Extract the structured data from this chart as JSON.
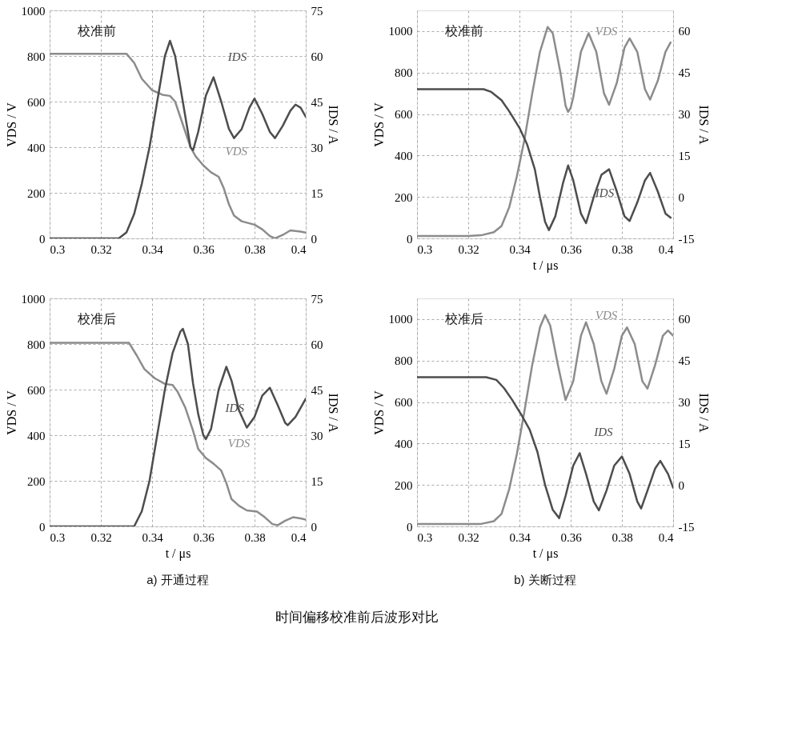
{
  "chart_data": [
    {
      "type": "line",
      "xlim": [
        0.3,
        0.4
      ],
      "xticks": [
        0.3,
        0.32,
        0.34,
        0.36,
        0.38,
        0.4
      ],
      "ylim": [
        0,
        1000
      ],
      "yticks": [
        0,
        200,
        400,
        600,
        800,
        1000
      ],
      "y2lim": [
        0,
        75
      ],
      "y2ticks": [
        0,
        15,
        30,
        45,
        60,
        75
      ],
      "ylabel": "VDS / V",
      "y2label": "IDS / A",
      "grid": true,
      "annotations": [
        "校准前"
      ],
      "series": [
        {
          "name": "VDS",
          "color": "#8c8c8c",
          "x": [
            0.3,
            0.31,
            0.32,
            0.33,
            0.333,
            0.336,
            0.34,
            0.344,
            0.347,
            0.349,
            0.352,
            0.355,
            0.357,
            0.36,
            0.363,
            0.366,
            0.368,
            0.37,
            0.372,
            0.375,
            0.38,
            0.383,
            0.386,
            0.388,
            0.391,
            0.394,
            0.398,
            0.4
          ],
          "values": [
            810,
            810,
            810,
            810,
            770,
            700,
            650,
            630,
            625,
            600,
            500,
            400,
            360,
            320,
            290,
            270,
            220,
            150,
            100,
            75,
            60,
            40,
            10,
            0,
            15,
            35,
            30,
            25
          ]
        },
        {
          "name": "IDS",
          "color": "#4d4d4d",
          "axis": "y2",
          "x": [
            0.3,
            0.31,
            0.32,
            0.327,
            0.33,
            0.333,
            0.336,
            0.339,
            0.342,
            0.345,
            0.347,
            0.349,
            0.352,
            0.355,
            0.356,
            0.358,
            0.361,
            0.364,
            0.367,
            0.37,
            0.372,
            0.375,
            0.378,
            0.38,
            0.383,
            0.386,
            0.388,
            0.391,
            0.394,
            0.396,
            0.398,
            0.4
          ],
          "values": [
            0,
            0,
            0,
            0,
            2,
            8,
            18,
            30,
            45,
            60,
            65,
            60,
            45,
            30,
            29,
            35,
            47,
            53,
            45,
            36,
            33,
            36,
            43,
            46,
            41,
            35,
            33,
            37,
            42,
            44,
            43,
            40
          ]
        }
      ]
    },
    {
      "type": "line",
      "xlim": [
        0.3,
        0.4
      ],
      "xticks": [
        0.3,
        0.32,
        0.34,
        0.36,
        0.38,
        0.4
      ],
      "ylim": [
        0,
        1100
      ],
      "yticks": [
        0,
        200,
        400,
        600,
        800,
        1000
      ],
      "y2lim": [
        -15,
        67.5
      ],
      "y2ticks": [
        -15,
        0,
        15,
        30,
        45,
        60
      ],
      "xlabel": "t / μs",
      "ylabel": "VDS / V",
      "y2label": "IDS / A",
      "grid": true,
      "annotations": [
        "校准前"
      ],
      "series": [
        {
          "name": "VDS",
          "color": "#8c8c8c",
          "x": [
            0.3,
            0.31,
            0.32,
            0.325,
            0.33,
            0.333,
            0.336,
            0.339,
            0.342,
            0.345,
            0.348,
            0.351,
            0.353,
            0.356,
            0.358,
            0.359,
            0.36,
            0.361,
            0.364,
            0.367,
            0.37,
            0.373,
            0.375,
            0.378,
            0.381,
            0.383,
            0.386,
            0.389,
            0.391,
            0.394,
            0.397,
            0.399
          ],
          "values": [
            12,
            12,
            12,
            15,
            30,
            60,
            150,
            300,
            480,
            700,
            900,
            1020,
            990,
            800,
            640,
            610,
            630,
            680,
            900,
            990,
            900,
            700,
            645,
            750,
            920,
            965,
            900,
            720,
            670,
            760,
            900,
            945
          ]
        },
        {
          "name": "IDS",
          "color": "#4d4d4d",
          "axis": "y2",
          "x": [
            0.3,
            0.31,
            0.32,
            0.326,
            0.329,
            0.333,
            0.336,
            0.34,
            0.343,
            0.346,
            0.348,
            0.35,
            0.3515,
            0.354,
            0.357,
            0.359,
            0.361,
            0.364,
            0.366,
            0.369,
            0.372,
            0.375,
            0.378,
            0.381,
            0.383,
            0.386,
            0.389,
            0.391,
            0.394,
            0.397,
            0.399
          ],
          "values": [
            39,
            39,
            39,
            39,
            38,
            35,
            31,
            25,
            19,
            10,
            0,
            -9,
            -12,
            -7,
            5,
            11.4,
            6,
            -6,
            -9.5,
            0,
            8,
            10,
            2,
            -7,
            -8.7,
            -2,
            6,
            8.7,
            2,
            -6,
            -7.5
          ]
        }
      ]
    },
    {
      "type": "line",
      "xlim": [
        0.3,
        0.4
      ],
      "xticks": [
        0.3,
        0.32,
        0.34,
        0.36,
        0.38,
        0.4
      ],
      "ylim": [
        0,
        1000
      ],
      "yticks": [
        0,
        200,
        400,
        600,
        800,
        1000
      ],
      "y2lim": [
        0,
        75
      ],
      "y2ticks": [
        0,
        15,
        30,
        45,
        60,
        75
      ],
      "xlabel": "t / μs",
      "ylabel": "VDS / V",
      "y2label": "IDS / A",
      "grid": true,
      "annotations": [
        "校准后",
        "a) 开通过程"
      ],
      "series": [
        {
          "name": "VDS",
          "color": "#8c8c8c",
          "x": [
            0.3,
            0.31,
            0.32,
            0.331,
            0.334,
            0.337,
            0.341,
            0.345,
            0.348,
            0.35,
            0.353,
            0.356,
            0.358,
            0.361,
            0.364,
            0.367,
            0.369,
            0.371,
            0.374,
            0.377,
            0.381,
            0.384,
            0.387,
            0.389,
            0.392,
            0.395,
            0.398,
            0.4
          ],
          "values": [
            805,
            805,
            805,
            805,
            750,
            690,
            650,
            625,
            620,
            590,
            520,
            420,
            340,
            300,
            275,
            245,
            190,
            120,
            90,
            70,
            65,
            40,
            10,
            5,
            25,
            40,
            35,
            30
          ]
        },
        {
          "name": "IDS",
          "color": "#4d4d4d",
          "axis": "y2",
          "x": [
            0.3,
            0.31,
            0.32,
            0.333,
            0.336,
            0.339,
            0.342,
            0.345,
            0.348,
            0.351,
            0.352,
            0.354,
            0.356,
            0.358,
            0.36,
            0.361,
            0.363,
            0.366,
            0.369,
            0.371,
            0.374,
            0.377,
            0.38,
            0.383,
            0.386,
            0.389,
            0.392,
            0.393,
            0.396,
            0.4
          ],
          "values": [
            0,
            0,
            0,
            0,
            5,
            15,
            30,
            45,
            57,
            64,
            65,
            60,
            47,
            37,
            30,
            28.7,
            32,
            45,
            52.5,
            48,
            38,
            32.5,
            36,
            43,
            45.6,
            40,
            34,
            33.3,
            36,
            42
          ]
        }
      ]
    },
    {
      "type": "line",
      "xlim": [
        0.3,
        0.4
      ],
      "xticks": [
        0.3,
        0.32,
        0.34,
        0.36,
        0.38,
        0.4
      ],
      "ylim": [
        0,
        1100
      ],
      "yticks": [
        0,
        200,
        400,
        600,
        800,
        1000
      ],
      "y2lim": [
        -15,
        67.5
      ],
      "y2ticks": [
        -15,
        0,
        15,
        30,
        45,
        60
      ],
      "xlabel": "t / μs",
      "ylabel": "VDS / V",
      "y2label": "IDS / A",
      "grid": true,
      "annotations": [
        "校准后",
        "b) 关断过程",
        "时间偏移校准前后波形对比"
      ],
      "series": [
        {
          "name": "VDS",
          "color": "#8c8c8c",
          "x": [
            0.3,
            0.31,
            0.32,
            0.325,
            0.33,
            0.333,
            0.336,
            0.339,
            0.342,
            0.345,
            0.348,
            0.35,
            0.352,
            0.355,
            0.358,
            0.361,
            0.364,
            0.366,
            0.369,
            0.372,
            0.374,
            0.377,
            0.38,
            0.382,
            0.385,
            0.388,
            0.39,
            0.393,
            0.396,
            0.398,
            0.4
          ],
          "values": [
            12,
            12,
            12,
            12,
            25,
            60,
            180,
            350,
            560,
            780,
            960,
            1020,
            970,
            780,
            610,
            700,
            920,
            985,
            880,
            700,
            640,
            760,
            920,
            960,
            880,
            700,
            665,
            780,
            920,
            945,
            920
          ]
        },
        {
          "name": "IDS",
          "color": "#4d4d4d",
          "axis": "y2",
          "x": [
            0.3,
            0.31,
            0.32,
            0.327,
            0.331,
            0.334,
            0.337,
            0.341,
            0.344,
            0.347,
            0.35,
            0.353,
            0.3555,
            0.358,
            0.361,
            0.3635,
            0.366,
            0.369,
            0.371,
            0.374,
            0.377,
            0.38,
            0.383,
            0.386,
            0.3875,
            0.39,
            0.393,
            0.395,
            0.398,
            0.4
          ],
          "values": [
            39,
            39,
            39,
            39,
            38,
            35,
            31,
            25,
            20,
            12,
            0,
            -9,
            -12,
            -4,
            7,
            11.5,
            4,
            -6,
            -9.2,
            -2,
            7,
            10.3,
            4,
            -6,
            -8.5,
            -2,
            6,
            8.7,
            4,
            -1
          ]
        }
      ]
    }
  ]
}
